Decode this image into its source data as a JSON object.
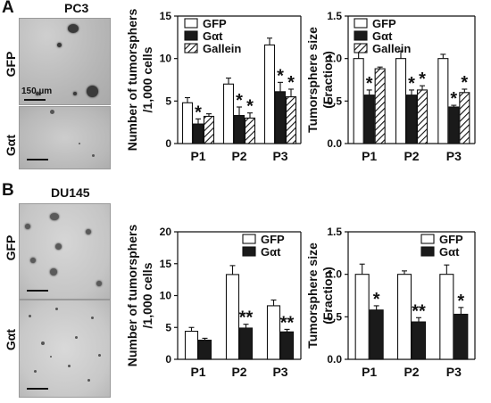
{
  "panels": [
    {
      "letter": "A",
      "cell_line": "PC3",
      "rows": [
        "GFP",
        "Gαt"
      ],
      "scale_label": "150 µm"
    },
    {
      "letter": "B",
      "cell_line": "DU145",
      "rows": [
        "GFP",
        "Gαt"
      ],
      "scale_label": ""
    }
  ],
  "colors": {
    "gfp": "#ffffff",
    "gat": "#1a1a1a",
    "gallein": "hatched",
    "axis": "#111111"
  },
  "chart_data": [
    {
      "id": "A-number",
      "type": "bar",
      "ylabel": "Number of tumorsphers\n/1,000 cells",
      "xlabel": "",
      "categories": [
        "P1",
        "P2",
        "P3"
      ],
      "ylim": [
        0,
        15
      ],
      "yticks": [
        0,
        5,
        10,
        15
      ],
      "ytick_labels": [
        "0",
        "5",
        "10",
        "15"
      ],
      "legend": "top-left",
      "series": [
        {
          "name": "GFP",
          "style": "white",
          "values": [
            4.8,
            7.0,
            11.6
          ],
          "errors": [
            0.6,
            0.7,
            0.8
          ]
        },
        {
          "name": "Gαt",
          "style": "black",
          "values": [
            2.3,
            3.3,
            6.1
          ],
          "errors": [
            0.6,
            1.0,
            1.1
          ]
        },
        {
          "name": "Gallein",
          "style": "hatch",
          "values": [
            3.2,
            3.0,
            5.5
          ],
          "errors": [
            0.3,
            0.6,
            0.9
          ]
        }
      ],
      "annotations": [
        {
          "category": 0,
          "series": 1,
          "text": "*"
        },
        {
          "category": 1,
          "series": 1,
          "text": "*"
        },
        {
          "category": 1,
          "series": 2,
          "text": "*"
        },
        {
          "category": 2,
          "series": 1,
          "text": "*"
        },
        {
          "category": 2,
          "series": 2,
          "text": "*"
        }
      ]
    },
    {
      "id": "A-size",
      "type": "bar",
      "ylabel": "Tumorsphere size\n(Fraction)",
      "xlabel": "",
      "categories": [
        "P1",
        "P2",
        "P3"
      ],
      "ylim": [
        0,
        1.5
      ],
      "yticks": [
        0,
        0.5,
        1.0,
        1.5
      ],
      "ytick_labels": [
        "0.0",
        "0.5",
        "1.0",
        "1.5"
      ],
      "legend": "top-left",
      "series": [
        {
          "name": "GFP",
          "style": "white",
          "values": [
            1.0,
            1.0,
            1.0
          ],
          "errors": [
            0.1,
            0.09,
            0.05
          ]
        },
        {
          "name": "Gαt",
          "style": "black",
          "values": [
            0.57,
            0.57,
            0.43
          ],
          "errors": [
            0.06,
            0.06,
            0.02
          ]
        },
        {
          "name": "Gallein",
          "style": "hatch",
          "values": [
            0.88,
            0.63,
            0.6
          ],
          "errors": [
            0.02,
            0.05,
            0.04
          ]
        }
      ],
      "annotations": [
        {
          "category": 0,
          "series": 1,
          "text": "*"
        },
        {
          "category": 1,
          "series": 1,
          "text": "*"
        },
        {
          "category": 1,
          "series": 2,
          "text": "*"
        },
        {
          "category": 2,
          "series": 1,
          "text": "*"
        },
        {
          "category": 2,
          "series": 2,
          "text": "*"
        }
      ]
    },
    {
      "id": "B-number",
      "type": "bar",
      "ylabel": "Number of tumorsphers\n/1,000 cells",
      "xlabel": "",
      "categories": [
        "P1",
        "P2",
        "P3"
      ],
      "ylim": [
        0,
        20
      ],
      "yticks": [
        0,
        5,
        10,
        15,
        20
      ],
      "ytick_labels": [
        "0",
        "5",
        "10",
        "15",
        "20"
      ],
      "legend": "top-right",
      "series": [
        {
          "name": "GFP",
          "style": "white",
          "values": [
            4.4,
            13.3,
            8.4
          ],
          "errors": [
            0.6,
            1.4,
            0.9
          ]
        },
        {
          "name": "Gαt",
          "style": "black",
          "values": [
            3.0,
            4.9,
            4.3
          ],
          "errors": [
            0.3,
            0.6,
            0.4
          ]
        }
      ],
      "annotations": [
        {
          "category": 1,
          "series": 1,
          "text": "**"
        },
        {
          "category": 2,
          "series": 1,
          "text": "**"
        }
      ]
    },
    {
      "id": "B-size",
      "type": "bar",
      "ylabel": "Tumorsphere size\n(Fraction)",
      "xlabel": "",
      "categories": [
        "P1",
        "P2",
        "P3"
      ],
      "ylim": [
        0,
        1.5
      ],
      "yticks": [
        0,
        0.5,
        1.0,
        1.5
      ],
      "ytick_labels": [
        "0.0",
        "0.5",
        "1.0",
        "1.5"
      ],
      "legend": "top-right",
      "series": [
        {
          "name": "GFP",
          "style": "white",
          "values": [
            1.0,
            1.0,
            1.0
          ],
          "errors": [
            0.12,
            0.04,
            0.11
          ]
        },
        {
          "name": "Gαt",
          "style": "black",
          "values": [
            0.58,
            0.44,
            0.53
          ],
          "errors": [
            0.05,
            0.05,
            0.08
          ]
        }
      ],
      "annotations": [
        {
          "category": 0,
          "series": 1,
          "text": "*"
        },
        {
          "category": 1,
          "series": 1,
          "text": "**"
        },
        {
          "category": 2,
          "series": 1,
          "text": "*"
        }
      ]
    }
  ]
}
